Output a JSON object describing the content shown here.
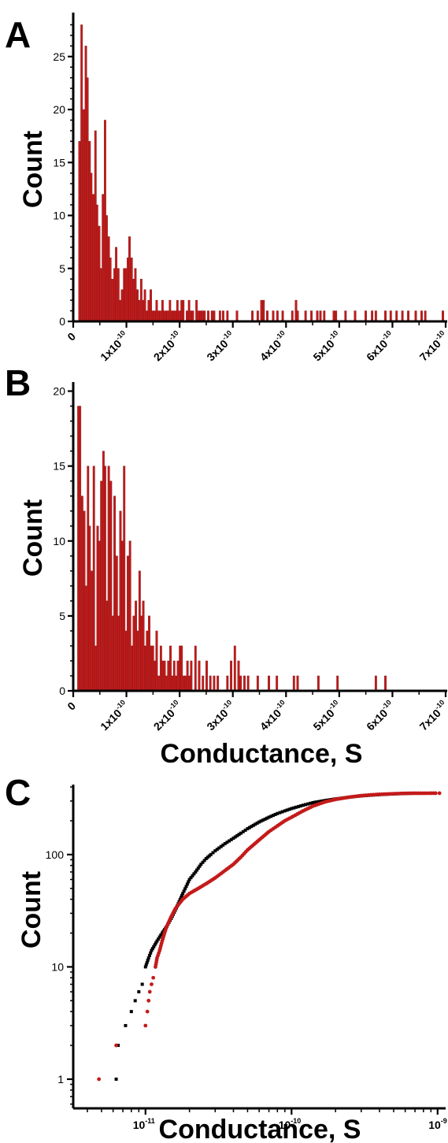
{
  "panels": {
    "A": {
      "letter": "A"
    },
    "B": {
      "letter": "B"
    },
    "C": {
      "letter": "C"
    }
  },
  "colors": {
    "red": "#c41a1a",
    "black": "#000000"
  },
  "chart_data": [
    {
      "type": "bar",
      "panel": "A",
      "ylabel": "Count",
      "xlabel": "",
      "xlim": [
        0,
        7e-10
      ],
      "ylim": [
        0,
        29
      ],
      "bin_width": 3.6e-12,
      "yticks": [
        0,
        5,
        10,
        15,
        20,
        25
      ],
      "xticks": [
        {
          "value": 0,
          "mant": "0",
          "exp": ""
        },
        {
          "value": 1e-10,
          "mant": "1x10",
          "exp": "-10"
        },
        {
          "value": 2e-10,
          "mant": "2x10",
          "exp": "-10"
        },
        {
          "value": 3e-10,
          "mant": "3x10",
          "exp": "-10"
        },
        {
          "value": 4e-10,
          "mant": "4x10",
          "exp": "-10"
        },
        {
          "value": 5e-10,
          "mant": "5x10",
          "exp": "-10"
        },
        {
          "value": 6e-10,
          "mant": "6x10",
          "exp": "-10"
        },
        {
          "value": 7e-10,
          "mant": "7x10",
          "exp": "-10"
        }
      ],
      "bins": [
        [
          1e-11,
          17
        ],
        [
          1.4e-11,
          28
        ],
        [
          1.8e-11,
          20
        ],
        [
          2.2e-11,
          26
        ],
        [
          2.5e-11,
          23
        ],
        [
          2.9e-11,
          17
        ],
        [
          3.2e-11,
          14
        ],
        [
          3.6e-11,
          12
        ],
        [
          4e-11,
          18
        ],
        [
          4.3e-11,
          11
        ],
        [
          4.7e-11,
          9
        ],
        [
          5e-11,
          5
        ],
        [
          5.4e-11,
          12
        ],
        [
          5.8e-11,
          19
        ],
        [
          6.1e-11,
          10
        ],
        [
          6.5e-11,
          8
        ],
        [
          6.8e-11,
          6
        ],
        [
          7.2e-11,
          4
        ],
        [
          7.6e-11,
          5
        ],
        [
          7.9e-11,
          7
        ],
        [
          8.3e-11,
          5
        ],
        [
          8.6e-11,
          2
        ],
        [
          9e-11,
          3
        ],
        [
          9.4e-11,
          5
        ],
        [
          9.7e-11,
          5
        ],
        [
          1.01e-10,
          6
        ],
        [
          1.04e-10,
          8
        ],
        [
          1.08e-10,
          6
        ],
        [
          1.12e-10,
          4
        ],
        [
          1.15e-10,
          5
        ],
        [
          1.19e-10,
          3
        ],
        [
          1.22e-10,
          2
        ],
        [
          1.26e-10,
          4
        ],
        [
          1.3e-10,
          2
        ],
        [
          1.33e-10,
          3
        ],
        [
          1.37e-10,
          1
        ],
        [
          1.4e-10,
          2
        ],
        [
          1.44e-10,
          3
        ],
        [
          1.48e-10,
          1
        ],
        [
          1.51e-10,
          1
        ],
        [
          1.55e-10,
          2
        ],
        [
          1.58e-10,
          1
        ],
        [
          1.62e-10,
          1
        ],
        [
          1.66e-10,
          2
        ],
        [
          1.69e-10,
          1
        ],
        [
          1.73e-10,
          1
        ],
        [
          1.76e-10,
          1
        ],
        [
          1.8e-10,
          2
        ],
        [
          1.84e-10,
          1
        ],
        [
          1.87e-10,
          1
        ],
        [
          1.91e-10,
          1
        ],
        [
          1.94e-10,
          2
        ],
        [
          1.98e-10,
          1
        ],
        [
          2.02e-10,
          2
        ],
        [
          2.05e-10,
          2
        ],
        [
          2.12e-10,
          1
        ],
        [
          2.16e-10,
          2
        ],
        [
          2.2e-10,
          1
        ],
        [
          2.23e-10,
          1
        ],
        [
          2.3e-10,
          2
        ],
        [
          2.34e-10,
          1
        ],
        [
          2.38e-10,
          1
        ],
        [
          2.41e-10,
          1
        ],
        [
          2.45e-10,
          1
        ],
        [
          2.52e-10,
          1
        ],
        [
          2.59e-10,
          1
        ],
        [
          2.63e-10,
          1
        ],
        [
          2.74e-10,
          1
        ],
        [
          2.8e-10,
          1
        ],
        [
          2.88e-10,
          1
        ],
        [
          3.06e-10,
          1
        ],
        [
          3.35e-10,
          1
        ],
        [
          3.45e-10,
          1
        ],
        [
          3.52e-10,
          2
        ],
        [
          3.56e-10,
          2
        ],
        [
          3.63e-10,
          1
        ],
        [
          3.74e-10,
          1
        ],
        [
          3.82e-10,
          1
        ],
        [
          3.92e-10,
          1
        ],
        [
          4.1e-10,
          1
        ],
        [
          4.17e-10,
          2
        ],
        [
          4.2e-10,
          1
        ],
        [
          4.35e-10,
          1
        ],
        [
          4.46e-10,
          1
        ],
        [
          4.57e-10,
          1
        ],
        [
          4.63e-10,
          1
        ],
        [
          4.7e-10,
          1
        ],
        [
          4.88e-10,
          1
        ],
        [
          4.92e-10,
          1
        ],
        [
          5.1e-10,
          1
        ],
        [
          5.28e-10,
          1
        ],
        [
          5.48e-10,
          1
        ],
        [
          5.6e-10,
          1
        ],
        [
          5.67e-10,
          1
        ],
        [
          5.85e-10,
          1
        ],
        [
          5.95e-10,
          1
        ],
        [
          6.06e-10,
          1
        ],
        [
          6.17e-10,
          1
        ],
        [
          6.28e-10,
          1
        ],
        [
          6.42e-10,
          1
        ],
        [
          6.53e-10,
          1
        ],
        [
          6.6e-10,
          1
        ],
        [
          6.93e-10,
          1
        ]
      ]
    },
    {
      "type": "bar",
      "panel": "B",
      "ylabel": "Count",
      "xlabel": "Conductance, S",
      "xlim": [
        0,
        7e-10
      ],
      "ylim": [
        0,
        20.5
      ],
      "bin_width": 3.6e-12,
      "yticks": [
        0,
        5,
        10,
        15,
        20
      ],
      "xticks": [
        {
          "value": 0,
          "mant": "0",
          "exp": ""
        },
        {
          "value": 1e-10,
          "mant": "1x10",
          "exp": "-10"
        },
        {
          "value": 2e-10,
          "mant": "2x10",
          "exp": "-10"
        },
        {
          "value": 3e-10,
          "mant": "3x10",
          "exp": "-10"
        },
        {
          "value": 4e-10,
          "mant": "4x10",
          "exp": "-10"
        },
        {
          "value": 5e-10,
          "mant": "5x10",
          "exp": "-10"
        },
        {
          "value": 6e-10,
          "mant": "6x10",
          "exp": "-10"
        },
        {
          "value": 7e-10,
          "mant": "7x10",
          "exp": "-10"
        }
      ],
      "bins": [
        [
          8e-12,
          19
        ],
        [
          1.1e-11,
          19
        ],
        [
          1.5e-11,
          13
        ],
        [
          1.9e-11,
          12
        ],
        [
          2.2e-11,
          7
        ],
        [
          2.6e-11,
          15
        ],
        [
          2.9e-11,
          11
        ],
        [
          3.3e-11,
          8
        ],
        [
          3.7e-11,
          15
        ],
        [
          4e-11,
          3
        ],
        [
          4.4e-11,
          11
        ],
        [
          4.7e-11,
          10
        ],
        [
          5.1e-11,
          14
        ],
        [
          5.5e-11,
          16
        ],
        [
          5.8e-11,
          15
        ],
        [
          6.2e-11,
          6
        ],
        [
          6.5e-11,
          15
        ],
        [
          6.9e-11,
          14
        ],
        [
          7.3e-11,
          5
        ],
        [
          7.6e-11,
          13
        ],
        [
          8e-11,
          9
        ],
        [
          8.3e-11,
          5
        ],
        [
          8.7e-11,
          12
        ],
        [
          9.1e-11,
          10
        ],
        [
          9.4e-11,
          15
        ],
        [
          9.8e-11,
          4
        ],
        [
          1.01e-10,
          9
        ],
        [
          1.05e-10,
          10
        ],
        [
          1.09e-10,
          3
        ],
        [
          1.12e-10,
          5
        ],
        [
          1.16e-10,
          6
        ],
        [
          1.19e-10,
          4
        ],
        [
          1.23e-10,
          8
        ],
        [
          1.27e-10,
          5
        ],
        [
          1.3e-10,
          6
        ],
        [
          1.34e-10,
          3
        ],
        [
          1.37e-10,
          4
        ],
        [
          1.41e-10,
          5
        ],
        [
          1.45e-10,
          3
        ],
        [
          1.48e-10,
          3
        ],
        [
          1.52e-10,
          2
        ],
        [
          1.55e-10,
          4
        ],
        [
          1.59e-10,
          1
        ],
        [
          1.63e-10,
          3
        ],
        [
          1.66e-10,
          2
        ],
        [
          1.7e-10,
          2
        ],
        [
          1.73e-10,
          1
        ],
        [
          1.77e-10,
          2
        ],
        [
          1.81e-10,
          3
        ],
        [
          1.84e-10,
          1
        ],
        [
          1.88e-10,
          2
        ],
        [
          1.91e-10,
          1
        ],
        [
          1.95e-10,
          2
        ],
        [
          1.99e-10,
          3
        ],
        [
          2.02e-10,
          3
        ],
        [
          2.06e-10,
          1
        ],
        [
          2.09e-10,
          1
        ],
        [
          2.13e-10,
          2
        ],
        [
          2.17e-10,
          1
        ],
        [
          2.2e-10,
          2
        ],
        [
          2.28e-10,
          3
        ],
        [
          2.35e-10,
          2
        ],
        [
          2.42e-10,
          1
        ],
        [
          2.49e-10,
          2
        ],
        [
          2.56e-10,
          1
        ],
        [
          2.63e-10,
          1
        ],
        [
          2.7e-10,
          1
        ],
        [
          2.88e-10,
          1
        ],
        [
          2.95e-10,
          2
        ],
        [
          3.02e-10,
          3
        ],
        [
          3.09e-10,
          2
        ],
        [
          3.13e-10,
          1
        ],
        [
          3.2e-10,
          1
        ],
        [
          3.27e-10,
          1
        ],
        [
          3.45e-10,
          1
        ],
        [
          3.66e-10,
          1
        ],
        [
          3.81e-10,
          1
        ],
        [
          4.13e-10,
          1
        ],
        [
          4.2e-10,
          1
        ],
        [
          4.59e-10,
          1
        ],
        [
          4.95e-10,
          1
        ],
        [
          5.67e-10,
          1
        ],
        [
          5.85e-10,
          1
        ]
      ]
    },
    {
      "type": "scatter",
      "panel": "C",
      "ylabel": "Count",
      "xlabel": "Conductance, S",
      "xscale": "log",
      "yscale": "log",
      "xlim": [
        3.2e-12,
        1.08e-09
      ],
      "ylim": [
        0.55,
        420
      ],
      "xticks": [
        {
          "value": 1e-11,
          "mant": "10",
          "exp": "-11"
        },
        {
          "value": 1e-10,
          "mant": "10",
          "exp": "-10"
        },
        {
          "value": 1e-09,
          "mant": "10",
          "exp": "-9"
        }
      ],
      "yticks": [
        1,
        10,
        100
      ],
      "series": [
        {
          "color": "black",
          "marker": "square",
          "points": [
            [
              6.3e-12,
              1
            ],
            [
              6.5e-12,
              2
            ],
            [
              7.3e-12,
              3
            ],
            [
              8e-12,
              4
            ],
            [
              8.5e-12,
              5
            ],
            [
              9e-12,
              6
            ],
            [
              9.5e-12,
              7
            ],
            [
              1e-11,
              10
            ],
            [
              1.05e-11,
              12
            ],
            [
              1.1e-11,
              14
            ],
            [
              1.2e-11,
              17
            ],
            [
              1.3e-11,
              20
            ],
            [
              1.4e-11,
              23
            ],
            [
              1.5e-11,
              27
            ],
            [
              1.6e-11,
              32
            ],
            [
              1.7e-11,
              38
            ],
            [
              1.8e-11,
              45
            ],
            [
              1.9e-11,
              52
            ],
            [
              2e-11,
              60
            ],
            [
              2.2e-11,
              70
            ],
            [
              2.4e-11,
              82
            ],
            [
              2.6e-11,
              92
            ],
            [
              2.8e-11,
              100
            ],
            [
              3e-11,
              108
            ],
            [
              3.5e-11,
              125
            ],
            [
              4e-11,
              140
            ],
            [
              4.5e-11,
              155
            ],
            [
              5e-11,
              170
            ],
            [
              6e-11,
              195
            ],
            [
              7e-11,
              215
            ],
            [
              8e-11,
              232
            ],
            [
              9e-11,
              245
            ],
            [
              1e-10,
              257
            ],
            [
              1.2e-10,
              275
            ],
            [
              1.4e-10,
              290
            ],
            [
              1.7e-10,
              303
            ],
            [
              2e-10,
              313
            ],
            [
              2.5e-10,
              325
            ],
            [
              3e-10,
              333
            ],
            [
              3.5e-10,
              338
            ],
            [
              4e-10,
              342
            ],
            [
              5e-10,
              347
            ],
            [
              6e-10,
              350
            ],
            [
              7e-10,
              352
            ]
          ]
        },
        {
          "color": "red",
          "marker": "circle",
          "points": [
            [
              4.8e-12,
              1
            ],
            [
              6.3e-12,
              2
            ],
            [
              1e-11,
              3
            ],
            [
              1.03e-11,
              4
            ],
            [
              1.05e-11,
              5
            ],
            [
              1.07e-11,
              6
            ],
            [
              1.1e-11,
              7
            ],
            [
              1.13e-11,
              8
            ],
            [
              1.17e-11,
              10
            ],
            [
              1.2e-11,
              12
            ],
            [
              1.25e-11,
              14
            ],
            [
              1.3e-11,
              17
            ],
            [
              1.35e-11,
              20
            ],
            [
              1.4e-11,
              23
            ],
            [
              1.5e-11,
              28
            ],
            [
              1.6e-11,
              33
            ],
            [
              1.8e-11,
              40
            ],
            [
              2e-11,
              45
            ],
            [
              2.3e-11,
              50
            ],
            [
              2.6e-11,
              55
            ],
            [
              3e-11,
              62
            ],
            [
              3.5e-11,
              72
            ],
            [
              4e-11,
              82
            ],
            [
              4.5e-11,
              95
            ],
            [
              5e-11,
              110
            ],
            [
              6e-11,
              135
            ],
            [
              7e-11,
              160
            ],
            [
              8e-11,
              180
            ],
            [
              9e-11,
              200
            ],
            [
              1e-10,
              215
            ],
            [
              1.2e-10,
              245
            ],
            [
              1.4e-10,
              270
            ],
            [
              1.7e-10,
              295
            ],
            [
              2e-10,
              310
            ],
            [
              2.5e-10,
              325
            ],
            [
              3e-10,
              335
            ],
            [
              3.5e-10,
              340
            ],
            [
              4e-10,
              344
            ],
            [
              5e-10,
              348
            ],
            [
              6e-10,
              351
            ],
            [
              9.7e-10,
              352
            ],
            [
              1.03e-09,
              352
            ]
          ]
        }
      ]
    }
  ]
}
